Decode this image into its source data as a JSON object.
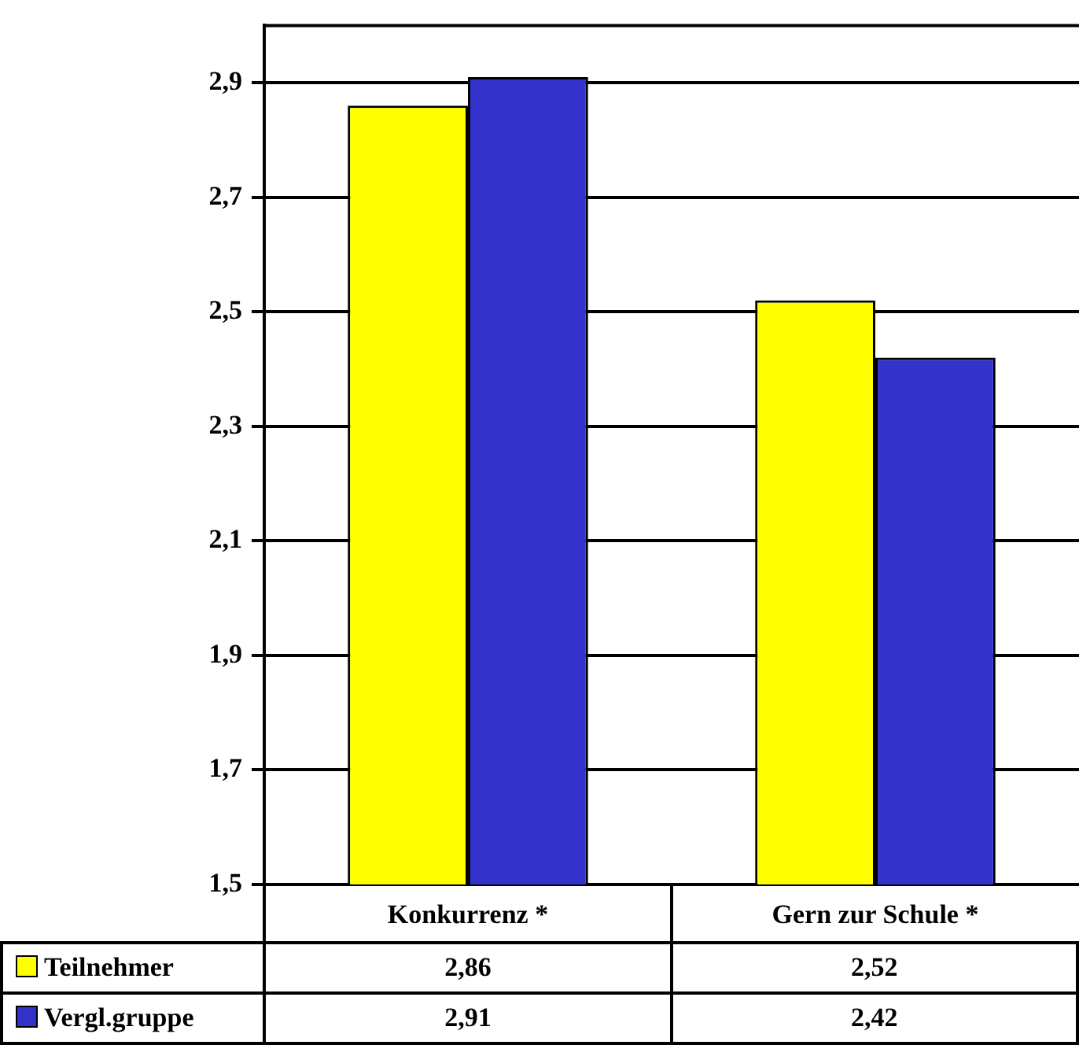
{
  "chart_data": {
    "type": "bar",
    "categories": [
      "Konkurrenz *",
      "Gern zur Schule *"
    ],
    "series": [
      {
        "name": "Teilnehmer",
        "color": "#ffff00",
        "values": [
          2.86,
          2.52
        ],
        "value_labels": [
          "2,86",
          "2,52"
        ]
      },
      {
        "name": "Vergl.gruppe",
        "color": "#3333cc",
        "values": [
          2.91,
          2.42
        ],
        "value_labels": [
          "2,91",
          "2,42"
        ]
      }
    ],
    "ylim": [
      1.5,
      3.0
    ],
    "yticks": [
      {
        "value": 1.5,
        "label": "1,5"
      },
      {
        "value": 1.7,
        "label": "1,7"
      },
      {
        "value": 1.9,
        "label": "1,9"
      },
      {
        "value": 2.1,
        "label": "2,1"
      },
      {
        "value": 2.3,
        "label": "2,3"
      },
      {
        "value": 2.5,
        "label": "2,5"
      },
      {
        "value": 2.7,
        "label": "2,7"
      },
      {
        "value": 2.9,
        "label": "2,9"
      }
    ],
    "grid": "y",
    "legend": "bottom left"
  }
}
